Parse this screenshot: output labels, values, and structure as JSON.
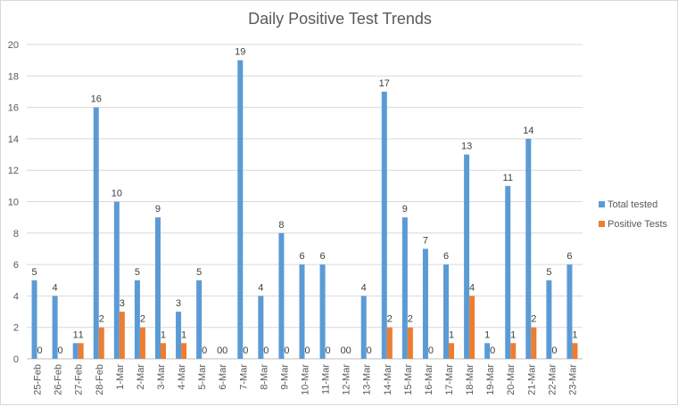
{
  "chart_data": {
    "type": "bar",
    "title": "Daily Positive Test Trends",
    "categories": [
      "25-Feb",
      "26-Feb",
      "27-Feb",
      "28-Feb",
      "1-Mar",
      "2-Mar",
      "3-Mar",
      "4-Mar",
      "5-Mar",
      "6-Mar",
      "7-Mar",
      "8-Mar",
      "9-Mar",
      "10-Mar",
      "11-Mar",
      "12-Mar",
      "13-Mar",
      "14-Mar",
      "15-Mar",
      "16-Mar",
      "17-Mar",
      "18-Mar",
      "19-Mar",
      "20-Mar",
      "21-Mar",
      "22-Mar",
      "23-Mar"
    ],
    "series": [
      {
        "name": "Total tested",
        "color": "#5b9bd5",
        "values": [
          5,
          4,
          1,
          16,
          10,
          5,
          9,
          3,
          5,
          0,
          19,
          4,
          8,
          6,
          6,
          0,
          4,
          17,
          9,
          7,
          6,
          13,
          1,
          11,
          14,
          5,
          6
        ]
      },
      {
        "name": "Positive Tests",
        "color": "#ed7d31",
        "values": [
          0,
          0,
          1,
          2,
          3,
          2,
          1,
          1,
          0,
          0,
          0,
          0,
          0,
          0,
          0,
          0,
          0,
          2,
          2,
          0,
          1,
          4,
          0,
          1,
          2,
          0,
          1
        ]
      }
    ],
    "ylim": [
      0,
      20
    ],
    "yticks": [
      0,
      2,
      4,
      6,
      8,
      10,
      12,
      14,
      16,
      18,
      20
    ],
    "grid": true,
    "legend": "right",
    "xlabel": "",
    "ylabel": ""
  }
}
